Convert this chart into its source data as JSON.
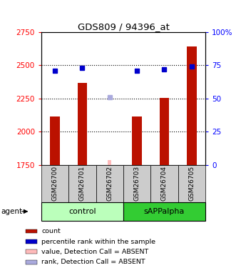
{
  "title": "GDS809 / 94396_at",
  "samples": [
    "GSM26700",
    "GSM26701",
    "GSM26702",
    "GSM26703",
    "GSM26704",
    "GSM26705"
  ],
  "bar_values": [
    2115,
    2370,
    null,
    2115,
    2255,
    2640
  ],
  "bar_absent_values": [
    null,
    null,
    1785,
    null,
    null,
    null
  ],
  "rank_values": [
    71,
    73,
    null,
    71,
    72,
    74
  ],
  "rank_absent_values": [
    null,
    null,
    51,
    null,
    null,
    null
  ],
  "ylim_left": [
    1750,
    2750
  ],
  "ylim_right": [
    0,
    100
  ],
  "yticks_left": [
    1750,
    2000,
    2250,
    2500,
    2750
  ],
  "ytick_labels_left": [
    "1750",
    "2000",
    "2250",
    "2500",
    "2750"
  ],
  "yticks_right": [
    0,
    25,
    50,
    75,
    100
  ],
  "ytick_labels_right": [
    "0",
    "25",
    "50",
    "75",
    "100%"
  ],
  "bar_color": "#bb1100",
  "bar_absent_color": "#ffbbbb",
  "rank_color": "#0000cc",
  "rank_absent_color": "#aaaadd",
  "control_bg": "#bbffbb",
  "sAPP_bg": "#33cc33",
  "label_bg": "#cccccc",
  "bar_width": 0.35,
  "absent_bar_width": 0.12,
  "grid_yticks": [
    2000,
    2250,
    2500
  ],
  "legend_items": [
    {
      "label": "count",
      "color": "#bb1100"
    },
    {
      "label": "percentile rank within the sample",
      "color": "#0000cc"
    },
    {
      "label": "value, Detection Call = ABSENT",
      "color": "#ffbbbb"
    },
    {
      "label": "rank, Detection Call = ABSENT",
      "color": "#aaaadd"
    }
  ],
  "groups": [
    {
      "label": "control",
      "start": 0,
      "end": 2,
      "color": "#bbffbb"
    },
    {
      "label": "sAPPalpha",
      "start": 3,
      "end": 5,
      "color": "#33cc33"
    }
  ]
}
